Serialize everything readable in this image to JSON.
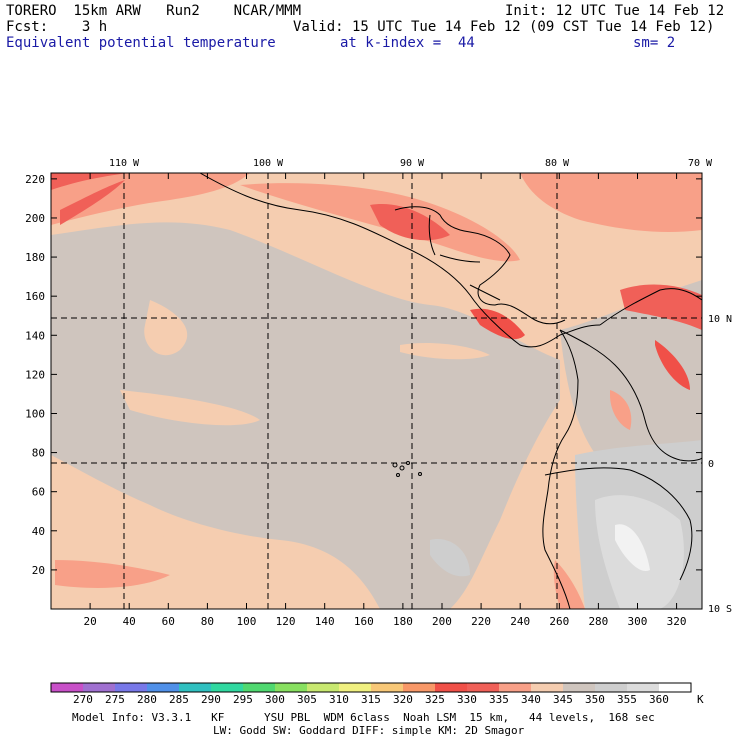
{
  "header": {
    "line1_left": "TORERO  15km ARW   Run2    NCAR/MMM",
    "line1_right": "Init: 12 UTC Tue 14 Feb 12",
    "line2_left": "Fcst:    3 h",
    "line2_right": "Valid: 15 UTC Tue 14 Feb 12 (09 CST Tue 14 Feb 12)",
    "line3_left": "Equivalent potential temperature",
    "line3_mid": "at k-index =  44",
    "line3_right": "sm= 2"
  },
  "map": {
    "x_ticks": [
      "20",
      "40",
      "60",
      "80",
      "100",
      "120",
      "140",
      "160",
      "180",
      "200",
      "220",
      "240",
      "260",
      "280",
      "300",
      "320"
    ],
    "y_ticks": [
      "20",
      "40",
      "60",
      "80",
      "100",
      "120",
      "140",
      "160",
      "180",
      "200",
      "220"
    ],
    "lon_labels": [
      "110 W",
      "100 W",
      "90 W",
      "80 W",
      "70 W"
    ],
    "lat_labels": [
      "10 N",
      "0",
      "10 S"
    ]
  },
  "colorbar": {
    "unit": "K",
    "levels": [
      "270",
      "275",
      "280",
      "285",
      "290",
      "295",
      "300",
      "305",
      "310",
      "315",
      "320",
      "325",
      "330",
      "335",
      "340",
      "345",
      "350",
      "355",
      "360"
    ],
    "colors": [
      "#c850c8",
      "#a070d0",
      "#7878e8",
      "#5090e8",
      "#30c0c0",
      "#30d8a0",
      "#50d870",
      "#88e060",
      "#c8e870",
      "#f0f080",
      "#f8c878",
      "#f89868",
      "#f05048",
      "#f06058",
      "#f8a088",
      "#f5cdb0",
      "#cfc5be",
      "#cecece",
      "#dcdcdc",
      "#ffffff"
    ]
  },
  "footer": {
    "line1": "Model Info: V3.3.1   KF      YSU PBL  WDM 6class  Noah LSM  15 km,   44 levels,  168 sec",
    "line2": "LW: Godd SW: Goddard DIFF: simple KM: 2D Smagor"
  }
}
